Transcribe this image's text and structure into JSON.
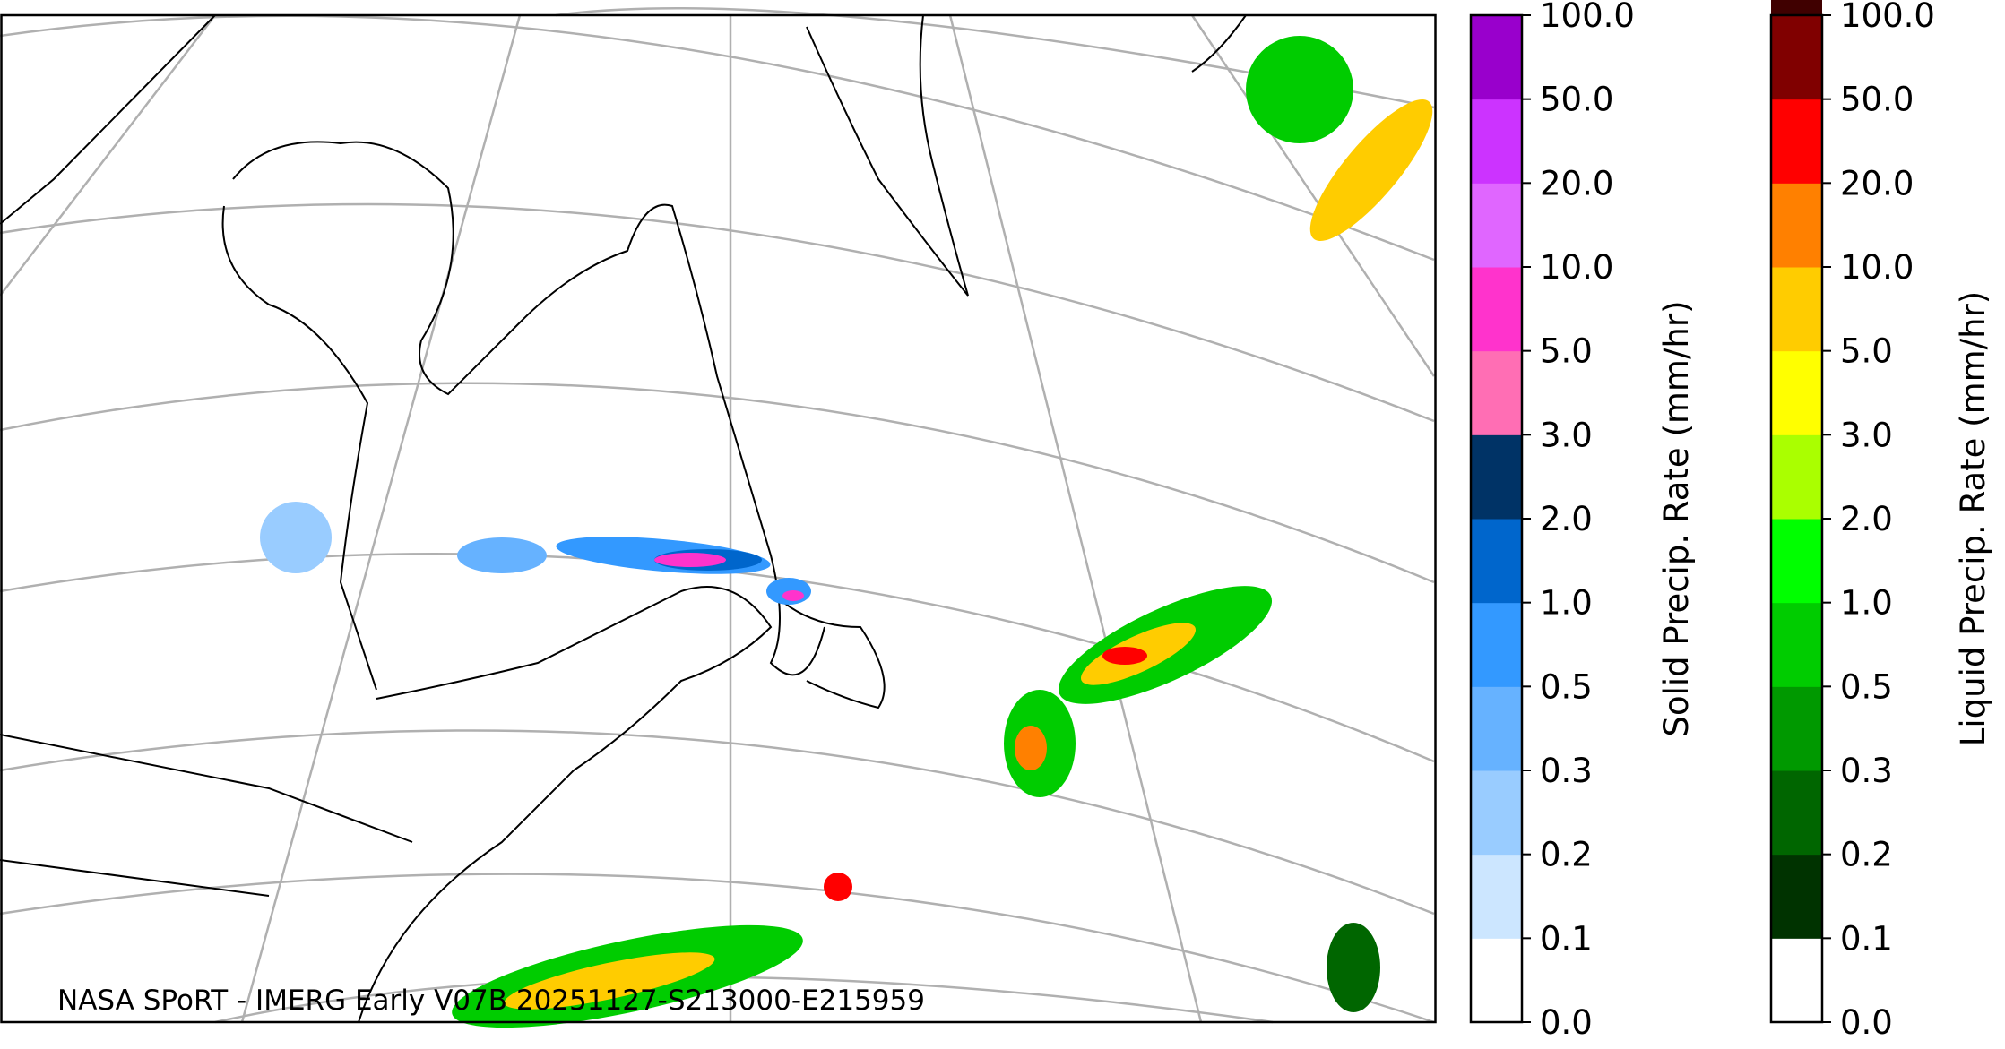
{
  "map": {
    "caption": "NASA SPoRT - IMERG Early V07B 20251127-S213000-E215959"
  },
  "colorbars": [
    {
      "label": "Solid Precip. Rate (mm/hr)",
      "ticks": [
        {
          "value": 0,
          "label": "0.0"
        },
        {
          "value": 0.1,
          "label": "0.1"
        },
        {
          "value": 0.2,
          "label": "0.2"
        },
        {
          "value": 0.3,
          "label": "0.3"
        },
        {
          "value": 0.5,
          "label": "0.5"
        },
        {
          "value": 1,
          "label": "1.0"
        },
        {
          "value": 2,
          "label": "2.0"
        },
        {
          "value": 3,
          "label": "3.0"
        },
        {
          "value": 5,
          "label": "5.0"
        },
        {
          "value": 10,
          "label": "10.0"
        },
        {
          "value": 20,
          "label": "20.0"
        },
        {
          "value": 50,
          "label": "50.0"
        },
        {
          "value": 100,
          "label": "100.0"
        }
      ],
      "colors": [
        "#ffffff",
        "#cce6ff",
        "#99ccff",
        "#66b2ff",
        "#3399ff",
        "#0066cc",
        "#003366",
        "#ff6eb4",
        "#ff33cc",
        "#e066ff",
        "#cc33ff",
        "#9900cc"
      ]
    },
    {
      "label": "Liquid Precip. Rate (mm/hr)",
      "ticks": [
        {
          "value": 0,
          "label": "0.0"
        },
        {
          "value": 0.1,
          "label": "0.1"
        },
        {
          "value": 0.2,
          "label": "0.2"
        },
        {
          "value": 0.3,
          "label": "0.3"
        },
        {
          "value": 0.5,
          "label": "0.5"
        },
        {
          "value": 1,
          "label": "1.0"
        },
        {
          "value": 2,
          "label": "2.0"
        },
        {
          "value": 3,
          "label": "3.0"
        },
        {
          "value": 5,
          "label": "5.0"
        },
        {
          "value": 10,
          "label": "10.0"
        },
        {
          "value": 20,
          "label": "20.0"
        },
        {
          "value": 50,
          "label": "50.0"
        },
        {
          "value": 100,
          "label": "100.0"
        }
      ],
      "colors": [
        "#ffffff",
        "#003300",
        "#006600",
        "#009900",
        "#00cc00",
        "#00ff00",
        "#aaff00",
        "#ffff00",
        "#ffcc00",
        "#ff8000",
        "#ff0000",
        "#800000",
        "#400000"
      ]
    }
  ]
}
